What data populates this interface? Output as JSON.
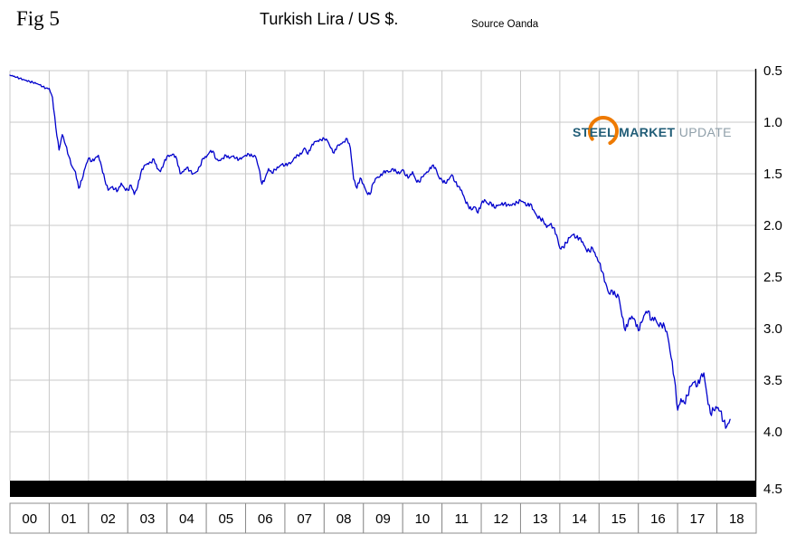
{
  "figure": {
    "fig_label": "Fig 5",
    "title": "Turkish Lira / US $.",
    "source": "Source Oanda"
  },
  "logo": {
    "steel": "STEEL",
    "market": "MARKET",
    "update": "UPDATE",
    "arc_color": "#ee7a00",
    "text_color": "#215d77",
    "update_color": "#90a0aa"
  },
  "chart_data": {
    "type": "line",
    "title": "Turkish Lira / US $.",
    "source": "Source Oanda",
    "xlim": [
      2000,
      2019
    ],
    "ylim": [
      0.5,
      4.5
    ],
    "y_axis": {
      "side": "right",
      "inverted": true,
      "ticks": [
        0.5,
        1.0,
        1.5,
        2.0,
        2.5,
        3.0,
        3.5,
        4.0,
        4.5
      ]
    },
    "y_tick_labels": [
      "0.5",
      "1.0",
      "1.5",
      "2.0",
      "2.5",
      "3.0",
      "3.5",
      "4.0",
      "4.5"
    ],
    "x_tick_labels": [
      "00",
      "01",
      "02",
      "03",
      "04",
      "05",
      "06",
      "07",
      "08",
      "09",
      "10",
      "11",
      "12",
      "13",
      "14",
      "15",
      "16",
      "17",
      "18"
    ],
    "grid": true,
    "line_color": "#0000cc",
    "series": [
      {
        "name": "Turkish Lira per US Dollar",
        "x_start_year": 2000,
        "x_interval": "monthly",
        "values": [
          0.545,
          0.555,
          0.565,
          0.575,
          0.585,
          0.595,
          0.605,
          0.615,
          0.625,
          0.638,
          0.655,
          0.67,
          0.673,
          0.76,
          1.05,
          1.27,
          1.12,
          1.22,
          1.33,
          1.43,
          1.48,
          1.64,
          1.56,
          1.44,
          1.35,
          1.38,
          1.35,
          1.32,
          1.43,
          1.56,
          1.66,
          1.63,
          1.65,
          1.66,
          1.59,
          1.64,
          1.66,
          1.61,
          1.7,
          1.63,
          1.49,
          1.42,
          1.4,
          1.39,
          1.36,
          1.45,
          1.48,
          1.4,
          1.33,
          1.32,
          1.31,
          1.36,
          1.5,
          1.48,
          1.44,
          1.47,
          1.5,
          1.48,
          1.43,
          1.35,
          1.34,
          1.29,
          1.28,
          1.36,
          1.37,
          1.35,
          1.32,
          1.35,
          1.33,
          1.35,
          1.36,
          1.34,
          1.32,
          1.31,
          1.33,
          1.33,
          1.44,
          1.6,
          1.54,
          1.45,
          1.49,
          1.46,
          1.44,
          1.41,
          1.42,
          1.4,
          1.39,
          1.34,
          1.32,
          1.31,
          1.25,
          1.31,
          1.24,
          1.19,
          1.18,
          1.17,
          1.16,
          1.18,
          1.25,
          1.3,
          1.23,
          1.21,
          1.19,
          1.16,
          1.25,
          1.55,
          1.64,
          1.54,
          1.6,
          1.68,
          1.7,
          1.59,
          1.54,
          1.53,
          1.49,
          1.47,
          1.48,
          1.45,
          1.48,
          1.5,
          1.46,
          1.52,
          1.53,
          1.48,
          1.56,
          1.58,
          1.53,
          1.5,
          1.47,
          1.42,
          1.44,
          1.53,
          1.56,
          1.59,
          1.56,
          1.51,
          1.58,
          1.62,
          1.66,
          1.75,
          1.81,
          1.85,
          1.82,
          1.88,
          1.79,
          1.75,
          1.79,
          1.78,
          1.83,
          1.81,
          1.8,
          1.79,
          1.8,
          1.8,
          1.79,
          1.78,
          1.76,
          1.78,
          1.81,
          1.79,
          1.85,
          1.91,
          1.93,
          1.96,
          2.02,
          1.99,
          2.02,
          2.09,
          2.22,
          2.21,
          2.17,
          2.12,
          2.09,
          2.12,
          2.12,
          2.16,
          2.23,
          2.25,
          2.22,
          2.3,
          2.36,
          2.45,
          2.56,
          2.66,
          2.63,
          2.68,
          2.69,
          2.88,
          3.02,
          2.92,
          2.88,
          2.92,
          3.02,
          2.94,
          2.86,
          2.83,
          2.92,
          2.89,
          2.96,
          2.96,
          2.98,
          3.08,
          3.28,
          3.48,
          3.79,
          3.68,
          3.72,
          3.65,
          3.56,
          3.52,
          3.56,
          3.47,
          3.43,
          3.65,
          3.82,
          3.79,
          3.77,
          3.8,
          3.9,
          3.95,
          3.88
        ]
      }
    ]
  }
}
